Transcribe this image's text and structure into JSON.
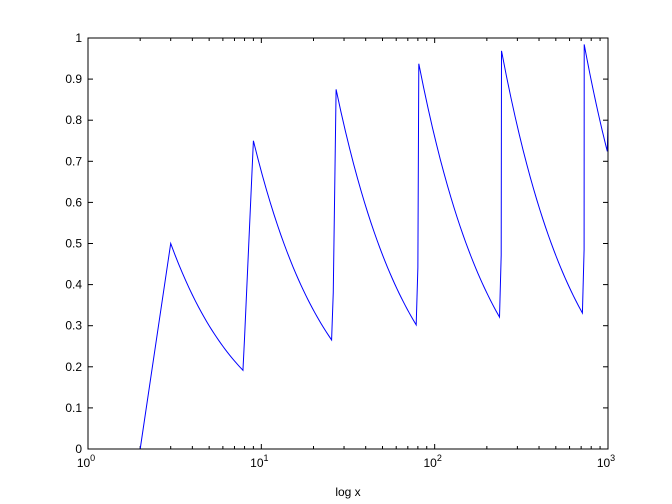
{
  "chart_data": {
    "type": "line",
    "title": "",
    "xlabel": "log x",
    "ylabel": "",
    "xscale": "log",
    "xlim": [
      1,
      1000
    ],
    "ylim": [
      0,
      1
    ],
    "grid": false,
    "x_ticks": [
      {
        "base": "10",
        "exp": "0",
        "value": 1
      },
      {
        "base": "10",
        "exp": "1",
        "value": 10
      },
      {
        "base": "10",
        "exp": "2",
        "value": 100
      },
      {
        "base": "10",
        "exp": "3",
        "value": 1000
      }
    ],
    "y_ticks": [
      "0",
      "0.1",
      "0.2",
      "0.3",
      "0.4",
      "0.5",
      "0.6",
      "0.7",
      "0.8",
      "0.9",
      "1"
    ],
    "line_color": "#0000ff",
    "series": [
      {
        "x": [
          2,
          3,
          8,
          9,
          26,
          27,
          80,
          81,
          242,
          243,
          728,
          729,
          1000
        ],
        "y": [
          0,
          0.5,
          0.2698,
          0.75,
          0.3804,
          0.875,
          0.4414,
          0.9375,
          0.4713,
          0.9688,
          0.4857,
          0.9844,
          0.8016
        ]
      }
    ]
  }
}
